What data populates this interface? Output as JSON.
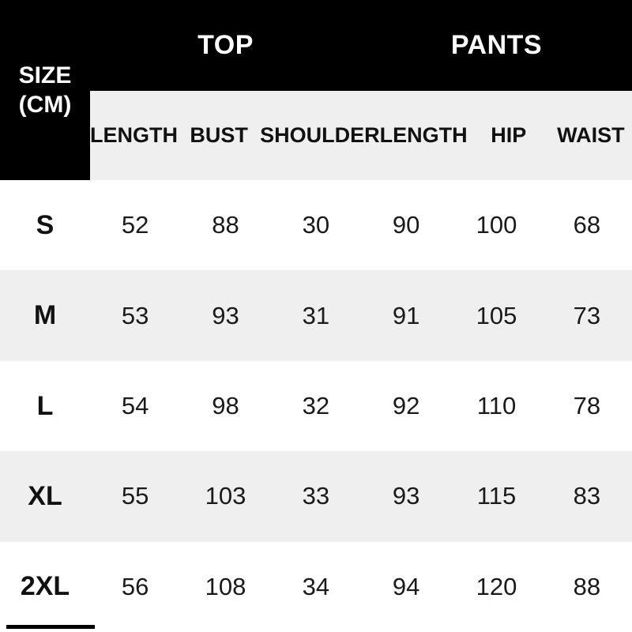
{
  "header": {
    "size_label": "SIZE",
    "size_unit": "(CM)",
    "top_label": "TOP",
    "pants_label": "PANTS"
  },
  "table": {
    "sub_headers": [
      "LENGTH",
      "BUST",
      "SHOULDER",
      "LENGTH",
      "HIP",
      "WAIST"
    ],
    "rows": [
      {
        "size": "S",
        "values": [
          52,
          88,
          30,
          90,
          100,
          68
        ]
      },
      {
        "size": "M",
        "values": [
          53,
          93,
          31,
          91,
          105,
          73
        ]
      },
      {
        "size": "L",
        "values": [
          54,
          98,
          32,
          92,
          110,
          78
        ]
      },
      {
        "size": "XL",
        "values": [
          55,
          103,
          33,
          93,
          115,
          83
        ]
      },
      {
        "size": "2XL",
        "values": [
          56,
          108,
          34,
          94,
          120,
          88
        ]
      }
    ]
  },
  "colors": {
    "header_bg": "#000000",
    "header_text": "#ffffff",
    "stripe_bg": "#efefef",
    "row_bg": "#ffffff",
    "body_text": "#1a1a1a"
  },
  "chart_data": {
    "type": "table",
    "title": "SIZE (CM)",
    "column_groups": [
      {
        "label": "TOP",
        "columns": [
          "LENGTH",
          "BUST",
          "SHOULDER"
        ]
      },
      {
        "label": "PANTS",
        "columns": [
          "LENGTH",
          "HIP",
          "WAIST"
        ]
      }
    ],
    "columns": [
      "SIZE",
      "TOP LENGTH",
      "BUST",
      "SHOULDER",
      "PANTS LENGTH",
      "HIP",
      "WAIST"
    ],
    "rows": [
      [
        "S",
        52,
        88,
        30,
        90,
        100,
        68
      ],
      [
        "M",
        53,
        93,
        31,
        91,
        105,
        73
      ],
      [
        "L",
        54,
        98,
        32,
        92,
        110,
        78
      ],
      [
        "XL",
        55,
        103,
        33,
        93,
        115,
        83
      ],
      [
        "2XL",
        56,
        108,
        34,
        94,
        120,
        88
      ]
    ],
    "unit": "cm",
    "layout": "striped rows, black group header band, black size box top-left"
  }
}
